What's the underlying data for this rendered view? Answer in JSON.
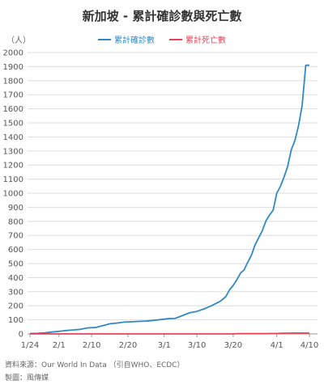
{
  "chart_data": {
    "type": "line",
    "title": "新加坡 - 累計確診數與死亡數",
    "ylabel": "（人）",
    "xlabel": "",
    "ylim": [
      0,
      2000
    ],
    "y_ticks": [
      0,
      100,
      200,
      300,
      400,
      500,
      600,
      700,
      800,
      900,
      1000,
      1100,
      1200,
      1300,
      1400,
      1500,
      1600,
      1700,
      1800,
      1900,
      2000
    ],
    "x_ticks": [
      "1/24",
      "2/1",
      "2/10",
      "2/20",
      "3/1",
      "3/10",
      "3/20",
      "4/1",
      "4/10"
    ],
    "x_dates": [
      "2020-01-24",
      "2020-01-26",
      "2020-01-28",
      "2020-01-30",
      "2020-02-01",
      "2020-02-03",
      "2020-02-05",
      "2020-02-07",
      "2020-02-09",
      "2020-02-11",
      "2020-02-13",
      "2020-02-15",
      "2020-02-17",
      "2020-02-19",
      "2020-02-21",
      "2020-02-23",
      "2020-02-25",
      "2020-02-27",
      "2020-02-29",
      "2020-03-02",
      "2020-03-04",
      "2020-03-06",
      "2020-03-08",
      "2020-03-10",
      "2020-03-12",
      "2020-03-14",
      "2020-03-16",
      "2020-03-17",
      "2020-03-18",
      "2020-03-19",
      "2020-03-20",
      "2020-03-21",
      "2020-03-22",
      "2020-03-23",
      "2020-03-24",
      "2020-03-25",
      "2020-03-26",
      "2020-03-27",
      "2020-03-28",
      "2020-03-29",
      "2020-03-30",
      "2020-03-31",
      "2020-04-01",
      "2020-04-02",
      "2020-04-03",
      "2020-04-04",
      "2020-04-05",
      "2020-04-06",
      "2020-04-07",
      "2020-04-08",
      "2020-04-09",
      "2020-04-10"
    ],
    "series": [
      {
        "name": "累計確診數",
        "color": "#2f8ac4",
        "values": [
          3,
          4,
          7,
          13,
          18,
          24,
          28,
          33,
          43,
          45,
          58,
          72,
          77,
          84,
          86,
          89,
          91,
          96,
          102,
          108,
          110,
          130,
          150,
          160,
          178,
          200,
          226,
          243,
          266,
          313,
          345,
          385,
          432,
          455,
          509,
          558,
          631,
          683,
          732,
          802,
          844,
          879,
          1000,
          1049,
          1114,
          1189,
          1309,
          1375,
          1481,
          1623,
          1910,
          1910
        ]
      },
      {
        "name": "累計死亡數",
        "color": "#e8425a",
        "values": [
          0,
          0,
          0,
          0,
          0,
          0,
          0,
          0,
          0,
          0,
          0,
          0,
          0,
          0,
          0,
          0,
          0,
          0,
          0,
          0,
          0,
          0,
          0,
          0,
          0,
          0,
          0,
          0,
          0,
          0,
          0,
          2,
          2,
          2,
          2,
          2,
          2,
          2,
          2,
          2,
          3,
          3,
          3,
          4,
          5,
          5,
          6,
          6,
          6,
          6,
          6,
          6
        ]
      }
    ]
  },
  "footer": {
    "source": "資料來源：Our World In Data （引自WHO、ECDC）",
    "credit": "製圖：風傳媒"
  }
}
